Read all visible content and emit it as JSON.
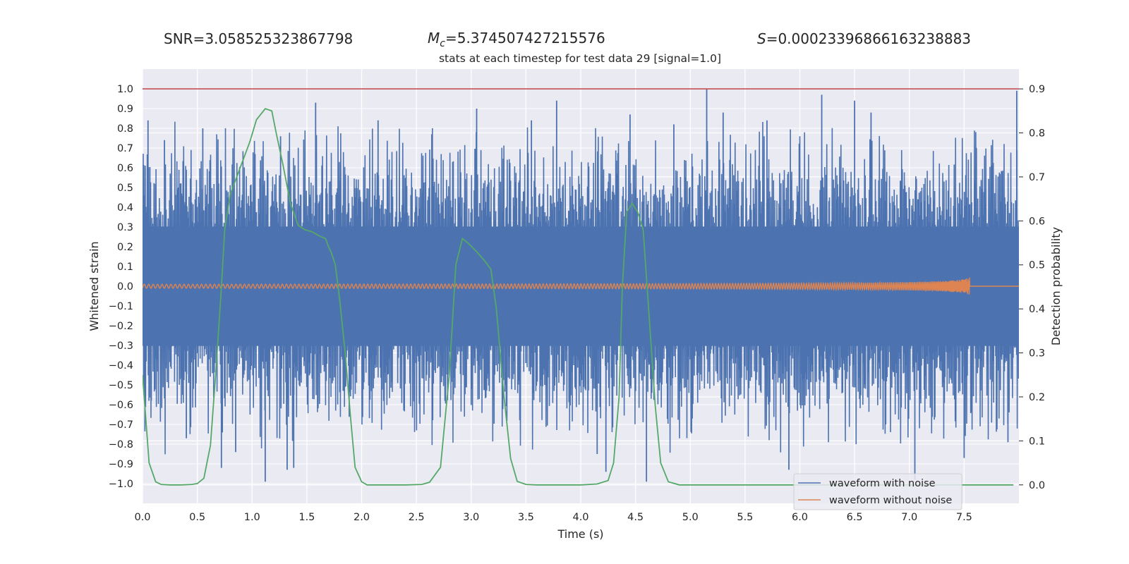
{
  "stats": {
    "snr_label": "SNR=",
    "snr_value": "3.058525323867798",
    "mc_symbol": "M",
    "mc_subscript": "c",
    "mc_value": "=5.374507427215576",
    "s_symbol": "S",
    "s_value": "=0.00023396866163238883"
  },
  "colors": {
    "background": "#eaeaf2",
    "grid": "#ffffff",
    "noisy": "#4c72b0",
    "clean": "#dd8452",
    "probability": "#55a868",
    "threshold": "#c44e52",
    "text": "#262626"
  },
  "chart_data": {
    "type": "line",
    "title": "stats at each timestep for test data 29 [signal=1.0]",
    "xlabel": "Time (s)",
    "ylabel": "Whitened strain",
    "y2label": "Detection probability",
    "xlim": [
      0,
      8
    ],
    "ylim": [
      -1.1,
      1.1
    ],
    "y2lim": [
      -0.042,
      0.945
    ],
    "x_ticks": [
      "0.0",
      "0.5",
      "1.0",
      "1.5",
      "2.0",
      "2.5",
      "3.0",
      "3.5",
      "4.0",
      "4.5",
      "5.0",
      "5.5",
      "6.0",
      "6.5",
      "7.0",
      "7.5"
    ],
    "y_ticks": [
      "1.0",
      "0.9",
      "0.8",
      "0.7",
      "0.6",
      "0.5",
      "0.4",
      "0.3",
      "0.2",
      "0.1",
      "0.0",
      "−0.1",
      "−0.2",
      "−0.3",
      "−0.4",
      "−0.5",
      "−0.6",
      "−0.7",
      "−0.8",
      "−0.9",
      "−1.0"
    ],
    "y2_ticks": [
      "0.9",
      "0.8",
      "0.7",
      "0.6",
      "0.5",
      "0.4",
      "0.3",
      "0.2",
      "0.1",
      "0.0"
    ],
    "grid": true,
    "legend_position": "lower-right",
    "threshold": {
      "y2": 0.9
    },
    "series": [
      {
        "name": "waveform with noise",
        "axis": "left",
        "description": "noisy strain, dense band roughly ±0.55 with spikes to ±1.0",
        "envelope_typical": 0.55,
        "envelope_max": 1.0,
        "spikes": [
          {
            "x": 0.05,
            "y": 0.84
          },
          {
            "x": 0.08,
            "y": -0.58
          },
          {
            "x": 0.2,
            "y": 0.74
          },
          {
            "x": 0.4,
            "y": -0.77
          },
          {
            "x": 0.55,
            "y": 0.8
          },
          {
            "x": 0.72,
            "y": -0.92
          },
          {
            "x": 0.85,
            "y": -0.84
          },
          {
            "x": 1.12,
            "y": -0.99
          },
          {
            "x": 1.26,
            "y": 0.76
          },
          {
            "x": 1.32,
            "y": -0.93
          },
          {
            "x": 1.38,
            "y": -0.92
          },
          {
            "x": 1.58,
            "y": 0.93
          },
          {
            "x": 2.15,
            "y": 0.84
          },
          {
            "x": 3.05,
            "y": 0.9
          },
          {
            "x": 3.55,
            "y": 0.84
          },
          {
            "x": 3.78,
            "y": 0.94
          },
          {
            "x": 4.15,
            "y": -0.85
          },
          {
            "x": 4.23,
            "y": -0.94
          },
          {
            "x": 4.45,
            "y": 0.87
          },
          {
            "x": 4.6,
            "y": -0.99
          },
          {
            "x": 4.85,
            "y": 0.82
          },
          {
            "x": 5.15,
            "y": 1.0
          },
          {
            "x": 5.3,
            "y": 0.88
          },
          {
            "x": 5.7,
            "y": 0.84
          },
          {
            "x": 5.9,
            "y": -0.93
          },
          {
            "x": 6.2,
            "y": 0.97
          },
          {
            "x": 6.5,
            "y": 0.94
          },
          {
            "x": 6.65,
            "y": 0.88
          },
          {
            "x": 7.05,
            "y": -0.98
          },
          {
            "x": 7.5,
            "y": -0.87
          },
          {
            "x": 7.9,
            "y": -0.79
          },
          {
            "x": 7.98,
            "y": 0.99
          }
        ]
      },
      {
        "name": "waveform without noise",
        "axis": "left",
        "description": "inspiral chirp: amplitude ~0.01 growing to ~0.08 at merger near 7.55 s, zero afterwards",
        "start_amplitude": 0.01,
        "peak_amplitude": 0.08,
        "merger_time": 7.55
      },
      {
        "name": "detection probability",
        "axis": "right",
        "x": [
          0.0,
          0.06,
          0.12,
          0.17,
          0.25,
          0.35,
          0.45,
          0.5,
          0.56,
          0.62,
          0.67,
          0.72,
          0.75,
          0.8,
          0.86,
          0.92,
          0.98,
          1.04,
          1.12,
          1.18,
          1.22,
          1.28,
          1.35,
          1.42,
          1.48,
          1.55,
          1.62,
          1.67,
          1.7,
          1.72,
          1.76,
          1.8,
          1.85,
          1.9,
          1.94,
          2.0,
          2.05,
          2.2,
          2.4,
          2.55,
          2.62,
          2.72,
          2.8,
          2.86,
          2.92,
          2.97,
          3.05,
          3.12,
          3.18,
          3.23,
          3.3,
          3.36,
          3.42,
          3.5,
          3.6,
          3.8,
          4.0,
          4.15,
          4.25,
          4.3,
          4.35,
          4.38,
          4.42,
          4.47,
          4.52,
          4.57,
          4.62,
          4.68,
          4.73,
          4.8,
          4.9,
          5.0,
          5.5,
          6.0,
          6.5,
          7.0,
          7.5,
          7.95
        ],
        "values": [
          0.25,
          0.05,
          0.007,
          0.001,
          0.0,
          0.0,
          0.001,
          0.003,
          0.015,
          0.09,
          0.26,
          0.45,
          0.58,
          0.66,
          0.7,
          0.74,
          0.78,
          0.83,
          0.855,
          0.85,
          0.8,
          0.73,
          0.64,
          0.59,
          0.58,
          0.575,
          0.565,
          0.56,
          0.54,
          0.53,
          0.5,
          0.42,
          0.3,
          0.15,
          0.04,
          0.007,
          0.0,
          0.0,
          0.0,
          0.001,
          0.006,
          0.04,
          0.25,
          0.5,
          0.56,
          0.55,
          0.53,
          0.51,
          0.49,
          0.4,
          0.2,
          0.06,
          0.008,
          0.001,
          0.0,
          0.0,
          0.0,
          0.002,
          0.01,
          0.05,
          0.2,
          0.45,
          0.62,
          0.64,
          0.62,
          0.58,
          0.4,
          0.18,
          0.05,
          0.007,
          0.0,
          0.0,
          0.0,
          0.0,
          0.0,
          0.0,
          0.0,
          0.0
        ]
      }
    ]
  }
}
